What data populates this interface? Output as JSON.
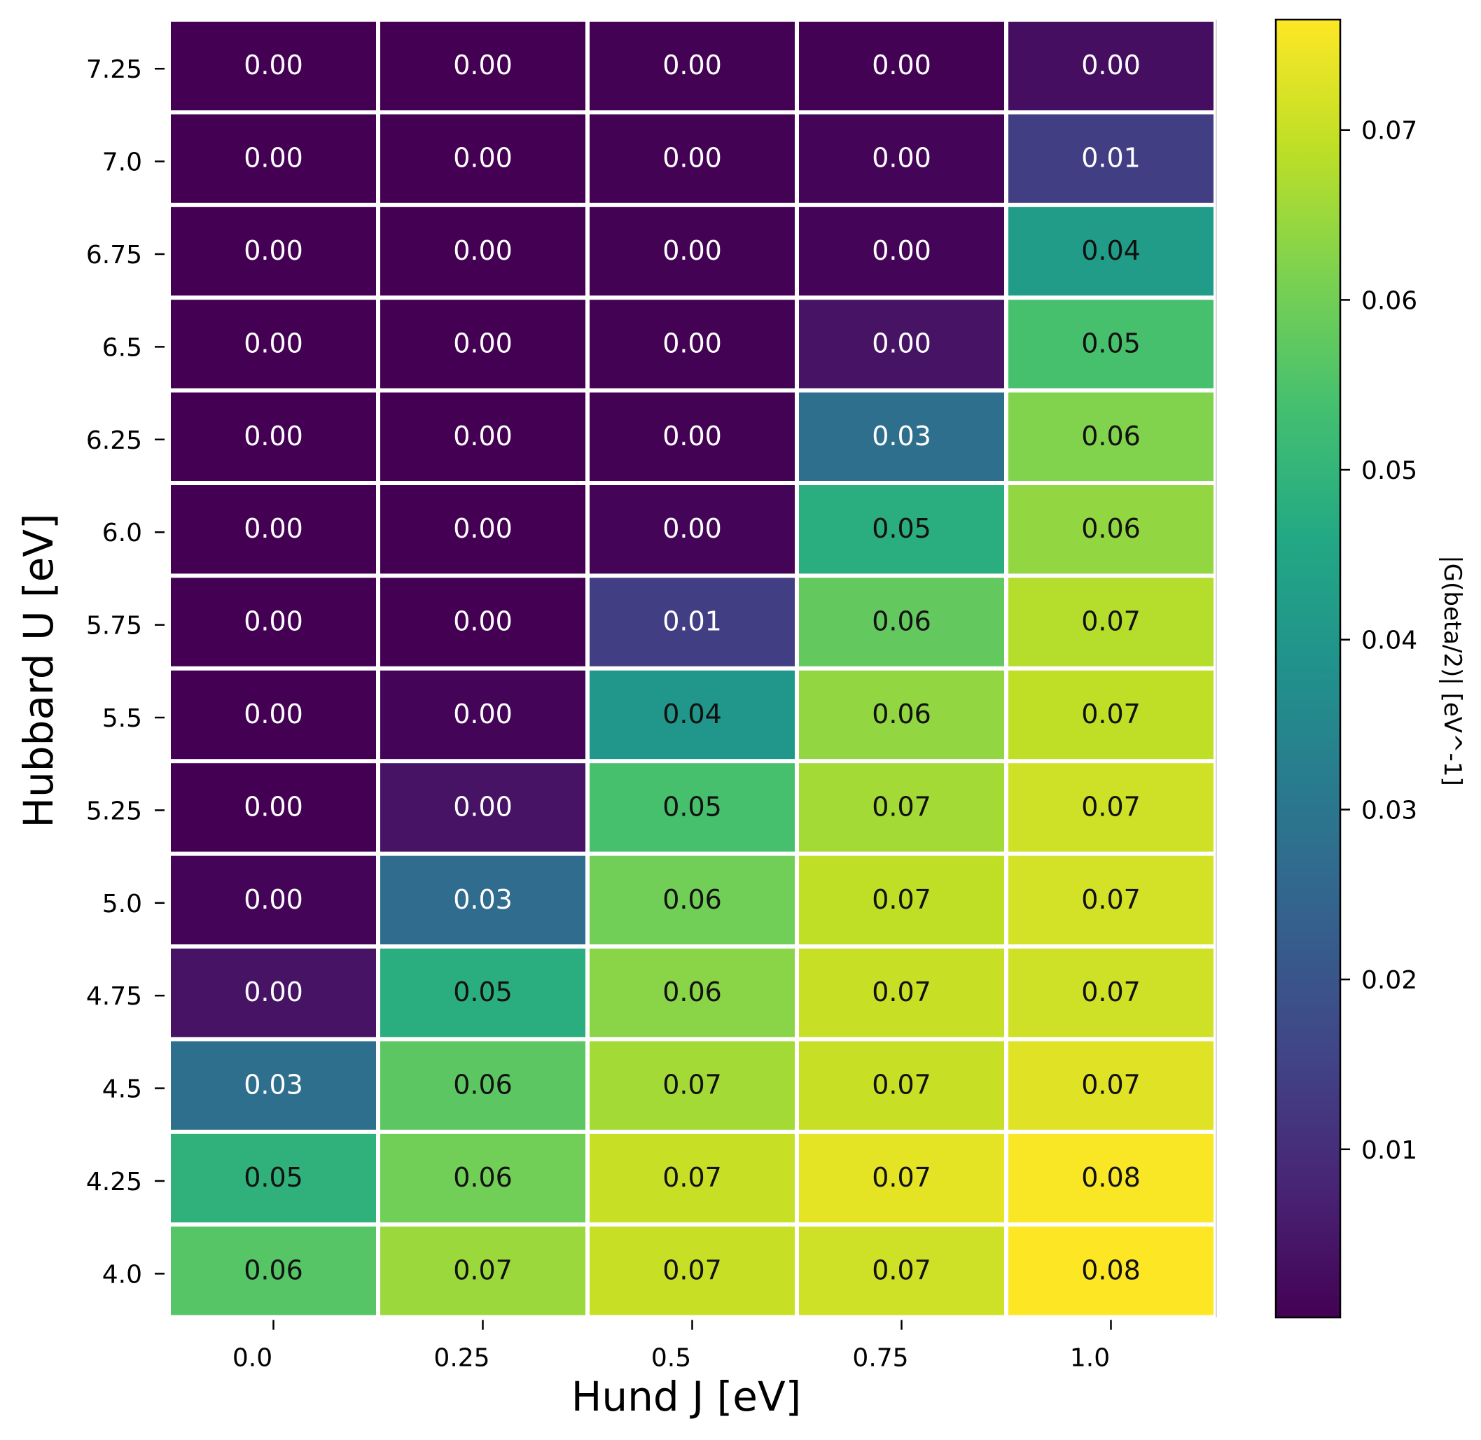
{
  "chart_data": {
    "type": "heatmap",
    "xlabel": "Hund J [eV]",
    "ylabel": "Hubbard U [eV]",
    "x_categories": [
      "0.0",
      "0.25",
      "0.5",
      "0.75",
      "1.0"
    ],
    "y_categories": [
      "7.25",
      "7.0",
      "6.75",
      "6.5",
      "6.25",
      "6.0",
      "5.75",
      "5.5",
      "5.25",
      "5.0",
      "4.75",
      "4.5",
      "4.25",
      "4.0"
    ],
    "values": [
      [
        0.0001,
        0.0002,
        0.0003,
        0.0004,
        0.003
      ],
      [
        0.0001,
        0.0002,
        0.0003,
        0.001,
        0.014
      ],
      [
        0.0001,
        0.0002,
        0.0003,
        0.001,
        0.042
      ],
      [
        0.0001,
        0.0002,
        0.0003,
        0.004,
        0.054
      ],
      [
        0.0001,
        0.0002,
        0.0003,
        0.028,
        0.062
      ],
      [
        0.0001,
        0.0002,
        0.001,
        0.048,
        0.064
      ],
      [
        0.0001,
        0.0002,
        0.014,
        0.058,
        0.068
      ],
      [
        0.0001,
        0.001,
        0.04,
        0.064,
        0.069
      ],
      [
        0.0001,
        0.004,
        0.054,
        0.066,
        0.071
      ],
      [
        0.001,
        0.027,
        0.06,
        0.069,
        0.0715
      ],
      [
        0.004,
        0.048,
        0.063,
        0.07,
        0.071
      ],
      [
        0.028,
        0.057,
        0.066,
        0.07,
        0.073
      ],
      [
        0.049,
        0.06,
        0.07,
        0.0735,
        0.076
      ],
      [
        0.056,
        0.065,
        0.07,
        0.071,
        0.0765
      ]
    ],
    "cell_labels": [
      [
        "0.00",
        "0.00",
        "0.00",
        "0.00",
        "0.00"
      ],
      [
        "0.00",
        "0.00",
        "0.00",
        "0.00",
        "0.01"
      ],
      [
        "0.00",
        "0.00",
        "0.00",
        "0.00",
        "0.04"
      ],
      [
        "0.00",
        "0.00",
        "0.00",
        "0.00",
        "0.05"
      ],
      [
        "0.00",
        "0.00",
        "0.00",
        "0.03",
        "0.06"
      ],
      [
        "0.00",
        "0.00",
        "0.00",
        "0.05",
        "0.06"
      ],
      [
        "0.00",
        "0.00",
        "0.01",
        "0.06",
        "0.07"
      ],
      [
        "0.00",
        "0.00",
        "0.04",
        "0.06",
        "0.07"
      ],
      [
        "0.00",
        "0.00",
        "0.05",
        "0.07",
        "0.07"
      ],
      [
        "0.00",
        "0.03",
        "0.06",
        "0.07",
        "0.07"
      ],
      [
        "0.00",
        "0.05",
        "0.06",
        "0.07",
        "0.07"
      ],
      [
        "0.03",
        "0.06",
        "0.07",
        "0.07",
        "0.07"
      ],
      [
        "0.05",
        "0.06",
        "0.07",
        "0.07",
        "0.08"
      ],
      [
        "0.06",
        "0.07",
        "0.07",
        "0.07",
        "0.08"
      ]
    ],
    "colormap": "viridis",
    "colorbar": {
      "label": "|G(beta/2)| [eV^-1]",
      "range": [
        0.0001,
        0.0765
      ],
      "ticks": [
        0.01,
        0.02,
        0.03,
        0.04,
        0.05,
        0.06,
        0.07
      ],
      "tick_labels": [
        "0.01",
        "0.02",
        "0.03",
        "0.04",
        "0.05",
        "0.06",
        "0.07"
      ]
    },
    "grid": false
  }
}
